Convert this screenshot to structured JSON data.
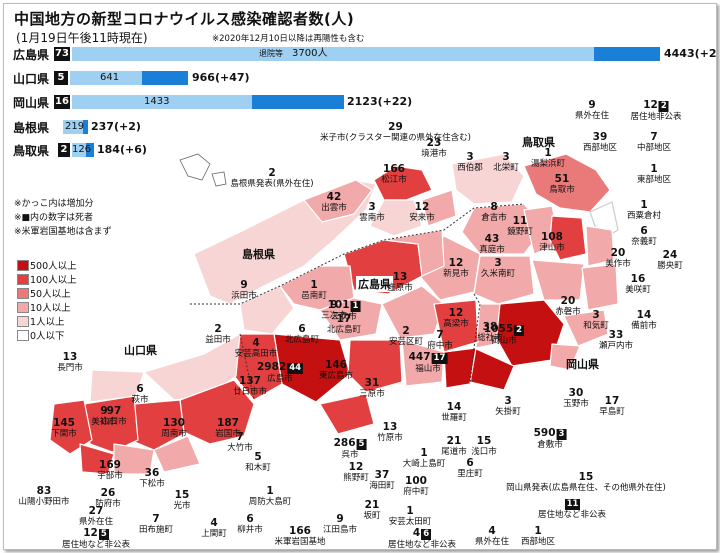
{
  "title": "中国地方の新型コロナウイルス感染確認者数(人)",
  "subtitle": "(1月19日午後11時現在)",
  "subtitle_note": "※2020年12月10日以降は再陽性も含む",
  "bars": [
    {
      "pref": "広島県",
      "deaths": "73",
      "light_val": "3700人",
      "light_prefix": "退院等",
      "dark_val": "",
      "total": "4443(+24)"
    },
    {
      "pref": "山口県",
      "deaths": "5",
      "light_val": "641",
      "dark_val": "",
      "total": "966(+47)"
    },
    {
      "pref": "岡山県",
      "deaths": "16",
      "light_val": "1433",
      "dark_val": "",
      "total": "2123(+22)"
    },
    {
      "pref": "島根県",
      "deaths": "",
      "light_val": "219",
      "dark_val": "",
      "total": "237(+2)"
    },
    {
      "pref": "鳥取県",
      "deaths": "2",
      "light_val": "126",
      "dark_val": "",
      "total": "184(+6)"
    }
  ],
  "map_labels": {
    "shimane": "島根県",
    "yamaguchi": "山口県",
    "tottori": "鳥取県",
    "okayama": "岡山県",
    "hiroshima": "広島県"
  },
  "notes": [
    "※かっこ内は増加分",
    "※■内の数字は死者",
    "※米軍岩国基地は含まず"
  ],
  "legend": [
    {
      "label": "500人以上",
      "color": "#c41010"
    },
    {
      "label": "100人以上",
      "color": "#e24040"
    },
    {
      "label": "50人以上",
      "color": "#ea7a7a"
    },
    {
      "label": "10人以上",
      "color": "#f1a9a9"
    },
    {
      "label": "1人以上",
      "color": "#f8d5d5"
    },
    {
      "label": "0人以下",
      "color": "#ffffff"
    }
  ],
  "regions": [
    {
      "id": "r1",
      "count": "29",
      "name": "米子市(クラスター関連の県外在住含む)"
    },
    {
      "id": "r2",
      "count": "23",
      "name": "境港市"
    },
    {
      "id": "r3",
      "count": "3",
      "name": "西伯郡"
    },
    {
      "id": "r4",
      "count": "3",
      "name": "北栄町"
    },
    {
      "id": "r5",
      "count": "1",
      "name": "湯梨浜町"
    },
    {
      "id": "r6",
      "count": "9",
      "name": "県外在住"
    },
    {
      "id": "r7",
      "count": "12",
      "name": "居住地非公表",
      "deaths": "2"
    },
    {
      "id": "r8",
      "count": "39",
      "name": "西部地区"
    },
    {
      "id": "r9",
      "count": "7",
      "name": "中部地区"
    },
    {
      "id": "r10",
      "count": "1",
      "name": "東部地区"
    },
    {
      "id": "r11",
      "count": "166",
      "name": "松江市"
    },
    {
      "id": "r12",
      "count": "51",
      "name": "鳥取市"
    },
    {
      "id": "r13",
      "count": "2",
      "name": "島根県発表(県外在住)"
    },
    {
      "id": "r14",
      "count": "42",
      "name": "出雲市"
    },
    {
      "id": "r15",
      "count": "3",
      "name": "雲南市"
    },
    {
      "id": "r16",
      "count": "12",
      "name": "安来市"
    },
    {
      "id": "r17",
      "count": "8",
      "name": "倉吉市"
    },
    {
      "id": "r18",
      "count": "1",
      "name": "西粟倉村"
    },
    {
      "id": "r19",
      "count": "11",
      "name": "鏡野町"
    },
    {
      "id": "r20",
      "count": "6",
      "name": "奈義町"
    },
    {
      "id": "r21",
      "count": "108",
      "name": "津山市"
    },
    {
      "id": "r22",
      "count": "43",
      "name": "真庭市"
    },
    {
      "id": "r23",
      "count": "12",
      "name": "新見市"
    },
    {
      "id": "r24",
      "count": "3",
      "name": "久米南町"
    },
    {
      "id": "r25",
      "count": "20",
      "name": "美作市"
    },
    {
      "id": "r26",
      "count": "24",
      "name": "勝央町"
    },
    {
      "id": "r27",
      "count": "16",
      "name": "美咲町"
    },
    {
      "id": "r28",
      "count": "1",
      "name": "邑南町"
    },
    {
      "id": "r29",
      "count": "9",
      "name": "浜田市"
    },
    {
      "id": "r30",
      "count": "2",
      "name": "益田市"
    },
    {
      "id": "r31",
      "count": "13",
      "name": "庄原市"
    },
    {
      "id": "r32",
      "count": "17",
      "name": "北広島町"
    },
    {
      "id": "r33",
      "count": "9",
      "name": "三次市"
    },
    {
      "id": "r34",
      "count": "101",
      "name": "三次市",
      "deaths": "1"
    },
    {
      "id": "r35",
      "count": "6",
      "name": "北広島町"
    },
    {
      "id": "r36",
      "count": "4",
      "name": "安芸高田市"
    },
    {
      "id": "r37",
      "count": "2982",
      "name": "広島市",
      "deaths": "44"
    },
    {
      "id": "r38",
      "count": "146",
      "name": "東広島市"
    },
    {
      "id": "r39",
      "count": "31",
      "name": "三原市"
    },
    {
      "id": "r40",
      "count": "447",
      "name": "福山市",
      "deaths": "17"
    },
    {
      "id": "r41",
      "count": "1055",
      "name": "岡山市",
      "deaths": "2"
    },
    {
      "id": "r42",
      "count": "38",
      "name": "総社市"
    },
    {
      "id": "r43",
      "count": "12",
      "name": "高梁市"
    },
    {
      "id": "r44",
      "count": "20",
      "name": "赤磐市"
    },
    {
      "id": "r45",
      "count": "3",
      "name": "和気町"
    },
    {
      "id": "r46",
      "count": "14",
      "name": "備前市"
    },
    {
      "id": "r47",
      "count": "33",
      "name": "瀬戸内市"
    },
    {
      "id": "r48",
      "count": "137",
      "name": "廿日市市"
    },
    {
      "id": "r49",
      "count": "145",
      "name": "下関市"
    },
    {
      "id": "r50",
      "count": "97",
      "name": "山口市"
    },
    {
      "id": "r51",
      "count": "130",
      "name": "周南市"
    },
    {
      "id": "r52",
      "count": "187",
      "name": "岩国市"
    },
    {
      "id": "r53",
      "count": "13",
      "name": "長門市"
    },
    {
      "id": "r54",
      "count": "9",
      "name": "美祢市"
    },
    {
      "id": "r55",
      "count": "6",
      "name": "萩市"
    },
    {
      "id": "r56",
      "count": "169",
      "name": "宇部市"
    },
    {
      "id": "r57",
      "count": "26",
      "name": "防府市"
    },
    {
      "id": "r58",
      "count": "36",
      "name": "下松市"
    },
    {
      "id": "r59",
      "count": "15",
      "name": "光市"
    },
    {
      "id": "r60",
      "count": "83",
      "name": "山陽小野田市"
    },
    {
      "id": "r61",
      "count": "27",
      "name": "県外在住"
    },
    {
      "id": "r62",
      "count": "7",
      "name": "田布施町"
    },
    {
      "id": "r63",
      "count": "4",
      "name": "上関町"
    },
    {
      "id": "r64",
      "count": "12",
      "name": "居住地など非公表",
      "deaths": "5"
    },
    {
      "id": "r65",
      "count": "7",
      "name": "大竹市"
    },
    {
      "id": "r66",
      "count": "5",
      "name": "和木町"
    },
    {
      "id": "r67",
      "count": "1",
      "name": "周防大島町"
    },
    {
      "id": "r68",
      "count": "6",
      "name": "柳井市"
    },
    {
      "id": "r69",
      "count": "166",
      "name": "米軍岩国基地"
    },
    {
      "id": "r70",
      "count": "286",
      "name": "呉市",
      "deaths": "5"
    },
    {
      "id": "r71",
      "count": "12",
      "name": "熊野町"
    },
    {
      "id": "r72",
      "count": "37",
      "name": "海田町"
    },
    {
      "id": "r73",
      "count": "21",
      "name": "坂町"
    },
    {
      "id": "r74",
      "count": "9",
      "name": "江田島市"
    },
    {
      "id": "r75",
      "count": "100",
      "name": "府中町"
    },
    {
      "id": "r76",
      "count": "1",
      "name": "安芸太田町"
    },
    {
      "id": "r77",
      "count": "13",
      "name": "竹原市"
    },
    {
      "id": "r78",
      "count": "1",
      "name": "大崎上島町"
    },
    {
      "id": "r79",
      "count": "21",
      "name": "尾道市"
    },
    {
      "id": "r80",
      "count": "14",
      "name": "世羅町"
    },
    {
      "id": "r81",
      "count": "15",
      "name": "浅口市"
    },
    {
      "id": "r82",
      "count": "6",
      "name": "里庄町"
    },
    {
      "id": "r83",
      "count": "3",
      "name": "矢掛町"
    },
    {
      "id": "r84",
      "count": "590",
      "name": "倉敷市",
      "deaths": "3"
    },
    {
      "id": "r85",
      "count": "30",
      "name": "玉野市"
    },
    {
      "id": "r86",
      "count": "17",
      "name": "早島町"
    },
    {
      "id": "r87",
      "count": "15",
      "name": "岡山県発表(広島県在住、その他県外在住)"
    },
    {
      "id": "r88",
      "count": "",
      "name": "居住地など非公表",
      "deaths": "11"
    },
    {
      "id": "r89",
      "count": "4",
      "name": "居住地など非公表",
      "deaths": "6"
    },
    {
      "id": "r90",
      "count": "4",
      "name": "県外在住"
    },
    {
      "id": "r91",
      "count": "1",
      "name": "西部地区"
    },
    {
      "id": "r92",
      "count": "7",
      "name": "府中市"
    },
    {
      "id": "r93",
      "count": "2",
      "name": "安芸区町"
    }
  ]
}
